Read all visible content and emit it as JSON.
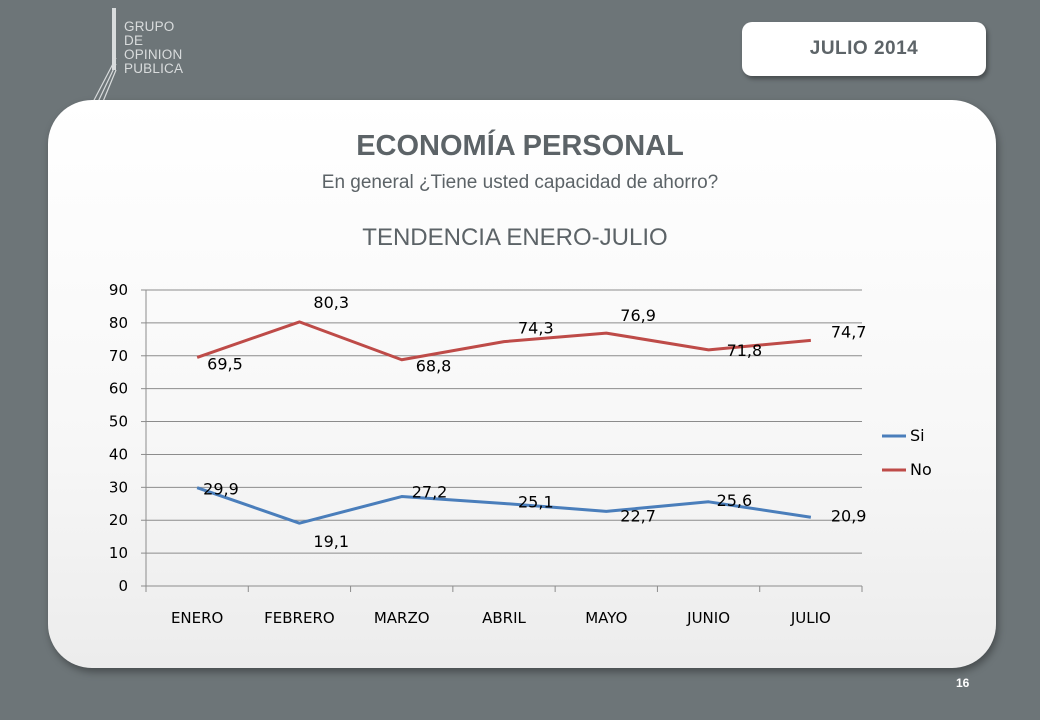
{
  "logo": {
    "lines": [
      "GRUPO",
      "DE",
      "OPINION",
      "PUBLICA"
    ]
  },
  "header": {
    "date": "JULIO  2014"
  },
  "slide": {
    "title": "ECONOMÍA PERSONAL",
    "subtitle": "En general ¿Tiene usted capacidad de ahorro?",
    "page_number": "16"
  },
  "chart_data": {
    "type": "line",
    "title": "TENDENCIA ENERO-JULIO",
    "categories": [
      "ENERO",
      "FEBRERO",
      "MARZO",
      "ABRIL",
      "MAYO",
      "JUNIO",
      "JULIO"
    ],
    "series": [
      {
        "name": "Si",
        "color": "#4a7ebb",
        "values": [
          29.9,
          19.1,
          27.2,
          25.1,
          22.7,
          25.6,
          20.9
        ],
        "labels": [
          "29,9",
          "19,1",
          "27,2",
          "25,1",
          "22,7",
          "25,6",
          "20,9"
        ]
      },
      {
        "name": "No",
        "color": "#be4b48",
        "values": [
          69.5,
          80.3,
          68.8,
          74.3,
          76.9,
          71.8,
          74.7
        ],
        "labels": [
          "69,5",
          "80,3",
          "68,8",
          "74,3",
          "76,9",
          "71,8",
          "74,7"
        ]
      }
    ],
    "y_ticks": [
      "0",
      "10",
      "20",
      "30",
      "40",
      "50",
      "60",
      "70",
      "80",
      "90"
    ],
    "ylim": [
      0,
      90
    ],
    "grid": true,
    "legend": "right"
  }
}
